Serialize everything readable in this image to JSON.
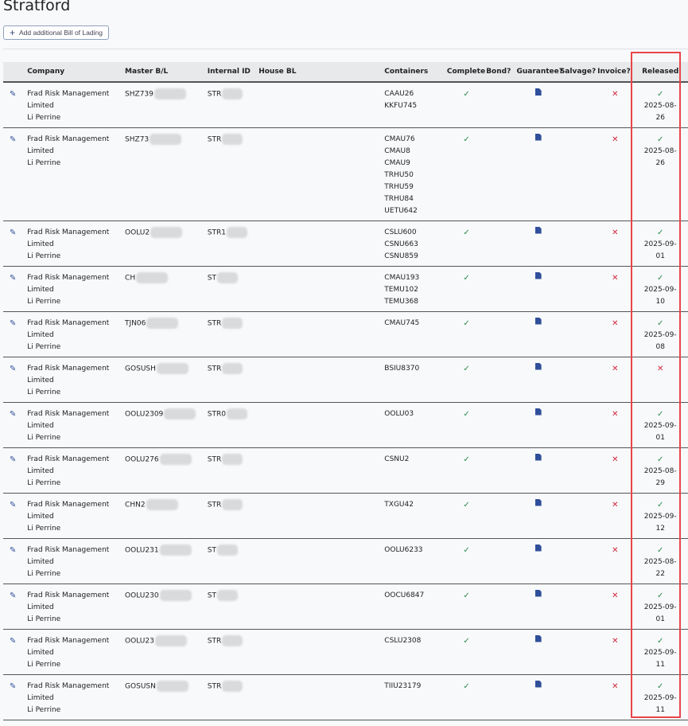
{
  "page_title": "Stratford",
  "add_button_label": "Add additional Bill of Lading",
  "colors": {
    "check": "#2a8a4a",
    "cross": "#d0283a",
    "highlight": "#e8454a",
    "pdf": "#2f4f9a"
  },
  "columns": [
    "",
    "Company",
    "Master B/L",
    "Internal ID",
    "House BL",
    "Containers",
    "Complete",
    "Bond?",
    "Guarantee?",
    "Salvage?",
    "Invoice?",
    "Released"
  ],
  "rows": [
    {
      "company": "Frad Risk Management Limited",
      "contact": "Li Perrine",
      "master": "SHZ739",
      "internal": "STR",
      "house": "",
      "containers": [
        "CAAU26",
        "KKFU745"
      ],
      "complete": true,
      "guarantee": "pdf",
      "invoice": false,
      "released": true,
      "released_date": "2025-08-26"
    },
    {
      "company": "Frad Risk Management Limited",
      "contact": "Li Perrine",
      "master": "SHZ73",
      "internal": "STR",
      "house": "",
      "containers": [
        "CMAU76",
        "CMAU8",
        "CMAU9",
        "TRHU50",
        "TRHU59",
        "TRHU84",
        "UETU642"
      ],
      "complete": true,
      "guarantee": "pdf",
      "invoice": false,
      "released": true,
      "released_date": "2025-08-26"
    },
    {
      "company": "Frad Risk Management Limited",
      "contact": "Li Perrine",
      "master": "OOLU2",
      "internal": "STR1",
      "house": "",
      "containers": [
        "CSLU600",
        "CSNU663",
        "CSNU859"
      ],
      "complete": true,
      "guarantee": "pdf",
      "invoice": false,
      "released": true,
      "released_date": "2025-09-01"
    },
    {
      "company": "Frad Risk Management Limited",
      "contact": "Li Perrine",
      "master": "CH",
      "internal": "ST",
      "house": "",
      "containers": [
        "CMAU193",
        "TEMU102",
        "TEMU368"
      ],
      "complete": true,
      "guarantee": "pdf",
      "invoice": false,
      "released": true,
      "released_date": "2025-09-10"
    },
    {
      "company": "Frad Risk Management Limited",
      "contact": "Li Perrine",
      "master": "TJN06",
      "internal": "STR",
      "house": "",
      "containers": [
        "CMAU745"
      ],
      "complete": true,
      "guarantee": "pdf",
      "invoice": false,
      "released": true,
      "released_date": "2025-09-08"
    },
    {
      "company": "Frad Risk Management Limited",
      "contact": "Li Perrine",
      "master": "GOSUSH",
      "internal": "STR",
      "house": "",
      "containers": [
        "BSIU8370"
      ],
      "complete": true,
      "guarantee": "pdf",
      "invoice": false,
      "released": false,
      "released_date": ""
    },
    {
      "company": "Frad Risk Management Limited",
      "contact": "Li Perrine",
      "master": "OOLU2309",
      "internal": "STR0",
      "house": "",
      "containers": [
        "OOLU03"
      ],
      "complete": true,
      "guarantee": "pdf",
      "invoice": false,
      "released": true,
      "released_date": "2025-09-01"
    },
    {
      "company": "Frad Risk Management Limited",
      "contact": "Li Perrine",
      "master": "OOLU276",
      "internal": "STR",
      "house": "",
      "containers": [
        "CSNU2"
      ],
      "complete": true,
      "guarantee": "pdf",
      "invoice": false,
      "released": true,
      "released_date": "2025-08-29"
    },
    {
      "company": "Frad Risk Management Limited",
      "contact": "Li Perrine",
      "master": "CHN2",
      "internal": "STR",
      "house": "",
      "containers": [
        "TXGU42"
      ],
      "complete": true,
      "guarantee": "pdf",
      "invoice": false,
      "released": true,
      "released_date": "2025-09-12"
    },
    {
      "company": "Frad Risk Management Limited",
      "contact": "Li Perrine",
      "master": "OOLU231",
      "internal": "ST",
      "house": "",
      "containers": [
        "OOLU6233"
      ],
      "complete": true,
      "guarantee": "pdf",
      "invoice": false,
      "released": true,
      "released_date": "2025-08-22"
    },
    {
      "company": "Frad Risk Management Limited",
      "contact": "Li Perrine",
      "master": "OOLU230",
      "internal": "ST",
      "house": "",
      "containers": [
        "OOCU6847"
      ],
      "complete": true,
      "guarantee": "pdf",
      "invoice": false,
      "released": true,
      "released_date": "2025-09-01"
    },
    {
      "company": "Frad Risk Management Limited",
      "contact": "Li Perrine",
      "master": "OOLU23",
      "internal": "STR",
      "house": "",
      "containers": [
        "CSLU2308"
      ],
      "complete": true,
      "guarantee": "pdf",
      "invoice": false,
      "released": true,
      "released_date": "2025-09-11"
    },
    {
      "company": "Frad Risk Management Limited",
      "contact": "Li Perrine",
      "master": "GOSUSN",
      "internal": "STR",
      "house": "",
      "containers": [
        "TIIU23179"
      ],
      "complete": true,
      "guarantee": "pdf",
      "invoice": false,
      "released": true,
      "released_date": "2025-09-11"
    }
  ]
}
